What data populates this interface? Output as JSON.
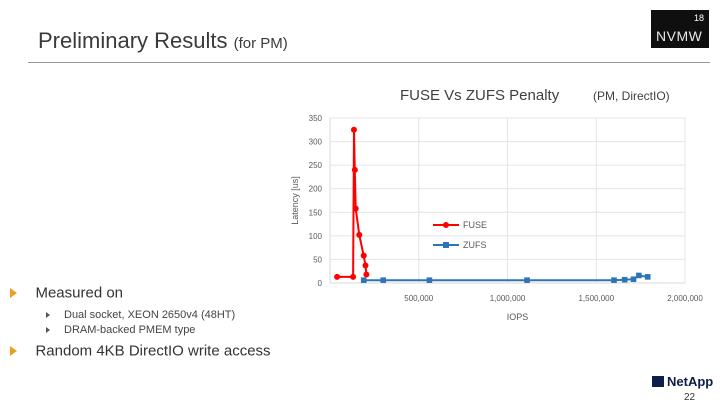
{
  "slide": {
    "title": "Preliminary Results",
    "title_suffix": "(for PM)",
    "logo_number": "18",
    "logo_text": "NVMW",
    "brand": "NetApp",
    "page_number": "22"
  },
  "bullets": [
    {
      "text": "Measured on",
      "subitems": [
        "Dual socket, XEON 2650v4 (48HT)",
        "DRAM-backed PMEM type"
      ]
    },
    {
      "text": "Random 4KB DirectIO write access",
      "subitems": []
    }
  ],
  "colors": {
    "accent": "#e8a020",
    "fuse": "#ff0000",
    "zufs": "#2e75b6"
  },
  "chart_data": {
    "type": "line",
    "title": "FUSE Vs ZUFS Penalty",
    "subtitle": "(PM, DirectIO)",
    "xlabel": "IOPS",
    "ylabel": "Latency [us]",
    "xlim": [
      0,
      2000000
    ],
    "ylim": [
      0,
      350
    ],
    "xticks": [
      500000,
      1000000,
      1500000,
      2000000
    ],
    "xtick_labels": [
      "500,000",
      "1,000,000",
      "1,500,000",
      "2,000,000"
    ],
    "yticks": [
      0,
      50,
      100,
      150,
      200,
      250,
      300,
      350
    ],
    "grid": true,
    "legend": "inside-center",
    "series": [
      {
        "name": "FUSE",
        "color": "#ff0000",
        "points": [
          [
            40000,
            13
          ],
          [
            130000,
            13
          ],
          [
            135000,
            325
          ],
          [
            140000,
            240
          ],
          [
            145000,
            158
          ],
          [
            165000,
            102
          ],
          [
            190000,
            58
          ],
          [
            200000,
            37
          ],
          [
            205000,
            18
          ]
        ]
      },
      {
        "name": "ZUFS",
        "color": "#2e75b6",
        "points": [
          [
            190000,
            6
          ],
          [
            300000,
            6
          ],
          [
            560000,
            6
          ],
          [
            1110000,
            6
          ],
          [
            1600000,
            6
          ],
          [
            1660000,
            7
          ],
          [
            1710000,
            8
          ],
          [
            1740000,
            16
          ],
          [
            1790000,
            13
          ]
        ]
      }
    ]
  }
}
